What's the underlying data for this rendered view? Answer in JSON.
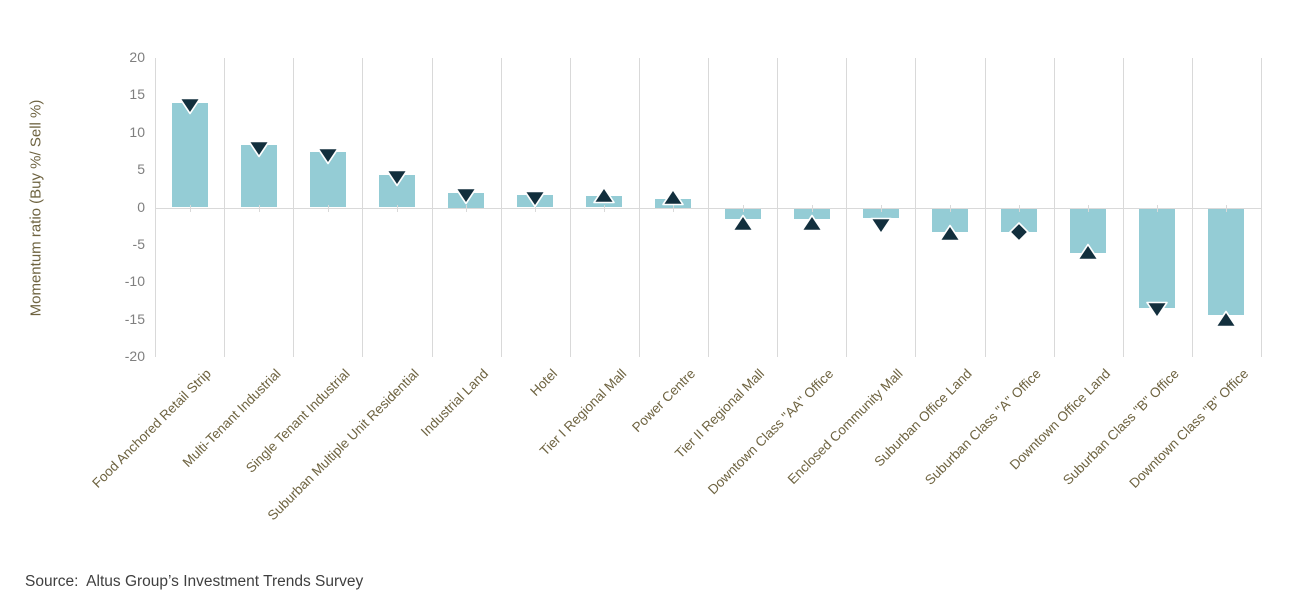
{
  "source": "Source:  Altus Group’s Investment Trends Survey",
  "colors": {
    "bar_fill": "#94ccd5",
    "marker_fill": "#122f3d",
    "marker_outline": "#ffffff",
    "gridline": "#d9d9d9",
    "axis_tick_text": "#7f7f7f",
    "label_text": "#6e6340",
    "source_text": "#3f3f3f",
    "background": "#ffffff"
  },
  "chart_data": {
    "type": "bar",
    "title": "",
    "xlabel": "",
    "ylabel": "Momentum ratio (Buy %/ Sell %)",
    "ylim": [
      -20,
      20
    ],
    "yticks": [
      20,
      15,
      10,
      5,
      0,
      -5,
      -10,
      -15,
      -20
    ],
    "grid": "vertical category separators only, no horizontal gridlines",
    "legend": "none",
    "categories": [
      "Food Anchored Retail Strip",
      "Multi-Tenant Industrial",
      "Single Tenant Industrial",
      "Suburban Multiple Unit Residential",
      "Industrial Land",
      "Hotel",
      "Tier I Regional Mall",
      "Power Centre",
      "Tier II Regional Mall",
      "Downtown Class \"AA\" Office",
      "Enclosed Community Mall",
      "Suburban Office Land",
      "Suburban Class \"A\" Office",
      "Downtown Office Land",
      "Suburban Class \"B\" Office",
      "Downtown Class \"B\" Office"
    ],
    "series": [
      {
        "name": "bars",
        "values": [
          14.0,
          8.3,
          7.4,
          4.4,
          2.0,
          1.7,
          1.5,
          1.2,
          -1.4,
          -1.4,
          -1.2,
          -3.1,
          -3.1,
          -6.0,
          -13.3,
          -14.2
        ]
      },
      {
        "name": "markers",
        "shapes": [
          "triangle-down",
          "triangle-down",
          "triangle-down",
          "triangle-down",
          "triangle-down",
          "triangle-down",
          "triangle-up",
          "triangle-up",
          "triangle-up",
          "triangle-up",
          "triangle-down",
          "triangle-up",
          "diamond",
          "triangle-up",
          "triangle-down",
          "triangle-up"
        ],
        "values": [
          13.6,
          7.8,
          6.9,
          3.9,
          1.5,
          1.2,
          1.7,
          1.4,
          -2.1,
          -2.1,
          -2.4,
          -3.4,
          -3.3,
          -5.9,
          -13.7,
          -14.9
        ]
      }
    ]
  }
}
